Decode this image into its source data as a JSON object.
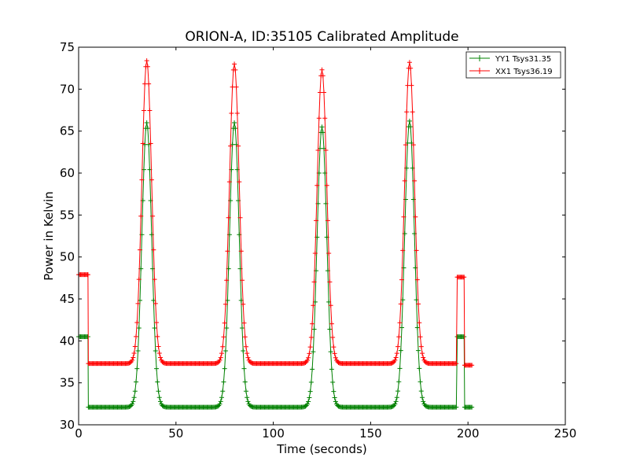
{
  "chart_data": {
    "type": "line",
    "title": "ORION-A, ID:35105 Calibrated Amplitude",
    "xlabel": "Time (seconds)",
    "ylabel": "Power in Kelvin",
    "xlim": [
      0,
      250
    ],
    "ylim": [
      30,
      75
    ],
    "xticks": [
      "0",
      "50",
      "100",
      "150",
      "200",
      "250"
    ],
    "yticks": [
      "30",
      "35",
      "40",
      "45",
      "50",
      "55",
      "60",
      "65",
      "70",
      "75"
    ],
    "grid": false,
    "legend_position": "top-right",
    "marker": "+",
    "scans": {
      "start": 5,
      "end": 194,
      "peak_centers": [
        35,
        80,
        125,
        170
      ],
      "peak_half_width_s": 2.5
    },
    "series": [
      {
        "name": "YY1 Tsys31.35",
        "color": "#008000",
        "baseline": 32.1,
        "peak_values": [
          66.0,
          66.0,
          65.5,
          66.2
        ],
        "cal_level_start": 40.5,
        "cal_level_end": 40.5,
        "final_level": 32.1,
        "end_time": 202
      },
      {
        "name": "XX1 Tsys36.19",
        "color": "#ff0000",
        "baseline": 37.3,
        "peak_values": [
          73.4,
          73.0,
          72.3,
          73.2
        ],
        "cal_level_start": 47.9,
        "cal_level_end": 47.6,
        "final_level": 37.1,
        "end_time": 202
      }
    ]
  }
}
